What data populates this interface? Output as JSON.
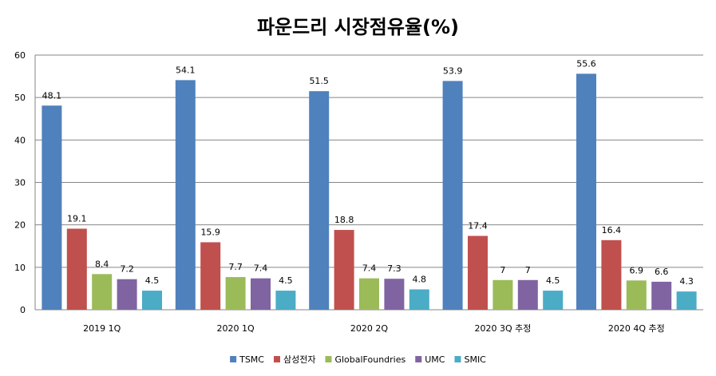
{
  "chart_data": {
    "type": "bar",
    "title": "파운드리 시장점유율(%)",
    "categories": [
      "2019 1Q",
      "2020 1Q",
      "2020 2Q",
      "2020 3Q 추정",
      "2020 4Q 추정"
    ],
    "series": [
      {
        "name": "TSMC",
        "color": "#4F81BD",
        "values": [
          48.1,
          54.1,
          51.5,
          53.9,
          55.6
        ]
      },
      {
        "name": "삼성전자",
        "color": "#C0504D",
        "values": [
          19.1,
          15.9,
          18.8,
          17.4,
          16.4
        ]
      },
      {
        "name": "GlobalFoundries",
        "color": "#9BBB59",
        "values": [
          8.4,
          7.7,
          7.4,
          7,
          6.9
        ]
      },
      {
        "name": "UMC",
        "color": "#8064A2",
        "values": [
          7.2,
          7.4,
          7.3,
          7,
          6.6
        ]
      },
      {
        "name": "SMIC",
        "color": "#4BACC6",
        "values": [
          4.5,
          4.5,
          4.8,
          4.5,
          4.3
        ]
      }
    ],
    "ylim": [
      0,
      60
    ],
    "yticks": [
      0,
      10,
      20,
      30,
      40,
      50,
      60
    ],
    "grid": true,
    "legend": "bottom"
  }
}
